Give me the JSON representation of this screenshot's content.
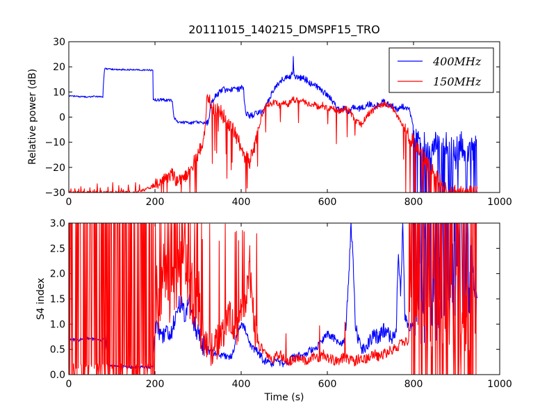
{
  "colors": {
    "s400": "#0000ff",
    "s150": "#ff0000",
    "axis": "#000000",
    "bg": "#ffffff"
  },
  "chart_data": [
    {
      "type": "line",
      "title": "20111015_140215_DMSPF15_TRO",
      "xlabel": "",
      "ylabel": "Relative power (dB)",
      "xlim": [
        0,
        1000
      ],
      "ylim": [
        -30,
        30
      ],
      "xticks": [
        "0",
        "200",
        "400",
        "600",
        "800",
        "1000"
      ],
      "yticks": [
        "−30",
        "−20",
        "−10",
        "0",
        "10",
        "20",
        "30"
      ],
      "legend_position": "top-right",
      "grid": false,
      "series": [
        {
          "name": "400MHz",
          "color_key": "s400",
          "style": "power400",
          "x": [
            0,
            20,
            40,
            60,
            79,
            80,
            83,
            84,
            100,
            130,
            160,
            190,
            195,
            196,
            200,
            215,
            230,
            240,
            244,
            248,
            250,
            255,
            265,
            280,
            300,
            320,
            325,
            330,
            340,
            350,
            360,
            370,
            380,
            390,
            400,
            405,
            410,
            415,
            420,
            430,
            440,
            450,
            460,
            470,
            480,
            490,
            500,
            510,
            515,
            520,
            521,
            522,
            524,
            530,
            540,
            550,
            560,
            570,
            580,
            590,
            600,
            610,
            620,
            630,
            640,
            650,
            660,
            670,
            680,
            690,
            700,
            710,
            720,
            730,
            740,
            750,
            760,
            770,
            780,
            790,
            795,
            800,
            805,
            810,
            815,
            820,
            830,
            840,
            850,
            860,
            870,
            880,
            890,
            900,
            910,
            920,
            930,
            940,
            945,
            948
          ],
          "y": [
            8.5,
            8.3,
            8.0,
            8.2,
            8.0,
            12.0,
            19.2,
            19.3,
            19.0,
            18.9,
            18.8,
            18.7,
            18.6,
            7.0,
            6.8,
            7.0,
            6.6,
            6.5,
            0.0,
            -1.0,
            -1.5,
            -1.8,
            -2.0,
            -2.3,
            -2.0,
            -2.5,
            -1.0,
            5.0,
            8.0,
            10.0,
            11.0,
            10.5,
            11.5,
            11.0,
            11.5,
            12.0,
            2.0,
            1.0,
            0.5,
            1.0,
            1.5,
            2.0,
            5.0,
            9.0,
            12.0,
            14.0,
            15.5,
            16.0,
            16.0,
            18.0,
            24.0,
            18.0,
            16.0,
            15.5,
            15.8,
            15.0,
            13.5,
            12.5,
            11.5,
            10.0,
            9.0,
            7.0,
            4.0,
            3.0,
            3.5,
            2.0,
            4.0,
            3.0,
            4.0,
            4.5,
            5.5,
            4.0,
            5.0,
            6.0,
            5.0,
            4.5,
            3.0,
            4.0,
            4.0,
            3.5,
            0.0,
            -5.0,
            -8.0,
            -10.0,
            -12.0,
            -10.0,
            -15.0,
            -12.0,
            -11.0,
            -10.0,
            -13.0,
            -15.0,
            -12.0,
            -18.0,
            -10.0,
            -15.0,
            -12.0,
            -14.0,
            -10.0,
            -15.0
          ]
        },
        {
          "name": "150MHz",
          "color_key": "s150",
          "style": "power150",
          "x": [
            0,
            30,
            60,
            90,
            120,
            150,
            170,
            190,
            200,
            210,
            220,
            230,
            240,
            250,
            260,
            270,
            280,
            290,
            300,
            310,
            315,
            320,
            325,
            330,
            340,
            350,
            360,
            370,
            380,
            390,
            400,
            410,
            420,
            430,
            440,
            450,
            460,
            470,
            480,
            490,
            500,
            510,
            520,
            530,
            540,
            550,
            560,
            570,
            580,
            590,
            600,
            610,
            620,
            630,
            640,
            650,
            660,
            670,
            680,
            690,
            700,
            710,
            720,
            730,
            740,
            750,
            760,
            770,
            780,
            790,
            800,
            810,
            820,
            830,
            840,
            850,
            860,
            870,
            880,
            890,
            900,
            910,
            920,
            930,
            940,
            948
          ],
          "y": [
            -30.0,
            -30.0,
            -30.0,
            -30.0,
            -30.0,
            -30.0,
            -29.0,
            -28.0,
            -27.0,
            -26.0,
            -25.0,
            -24.0,
            -22.0,
            -26.0,
            -25.0,
            -24.0,
            -22.0,
            -18.0,
            -15.0,
            -10.0,
            -5.0,
            6.0,
            7.0,
            5.0,
            3.0,
            3.0,
            0.0,
            -2.0,
            -5.0,
            -8.0,
            -12.0,
            -16.0,
            -18.0,
            -12.0,
            -5.0,
            2.0,
            5.0,
            5.5,
            6.0,
            4.5,
            6.0,
            5.0,
            7.0,
            6.5,
            7.0,
            6.0,
            5.0,
            5.0,
            4.0,
            5.0,
            3.0,
            3.5,
            3.0,
            2.5,
            3.5,
            3.0,
            0.0,
            -2.0,
            -3.0,
            0.0,
            2.0,
            3.0,
            4.0,
            5.0,
            5.0,
            4.0,
            1.0,
            -2.0,
            -5.0,
            -8.0,
            -10.0,
            -12.0,
            -15.0,
            -18.0,
            -20.0,
            -23.0,
            -25.0,
            -28.0,
            -30.0,
            -30.0,
            -30.0,
            -30.0,
            -30.0,
            -30.0,
            -30.0,
            -30.0
          ]
        }
      ]
    },
    {
      "type": "line",
      "title": "",
      "xlabel": "Time (s)",
      "ylabel": "S4 index",
      "xlim": [
        0,
        1000
      ],
      "ylim": [
        0,
        3
      ],
      "xticks": [
        "0",
        "200",
        "400",
        "600",
        "800",
        "1000"
      ],
      "yticks": [
        "0.0",
        "0.5",
        "1.0",
        "1.5",
        "2.0",
        "2.5",
        "3.0"
      ],
      "grid": false,
      "series": [
        {
          "color_key": "s400",
          "style": "s4_400",
          "x": [
            0,
            20,
            40,
            60,
            80,
            85,
            90,
            100,
            120,
            140,
            160,
            180,
            195,
            200,
            210,
            220,
            240,
            250,
            260,
            270,
            280,
            290,
            300,
            310,
            320,
            330,
            340,
            350,
            360,
            370,
            380,
            390,
            400,
            410,
            420,
            430,
            440,
            450,
            460,
            470,
            480,
            490,
            500,
            510,
            520,
            530,
            540,
            550,
            560,
            570,
            580,
            590,
            600,
            610,
            620,
            630,
            640,
            645,
            650,
            655,
            660,
            665,
            670,
            680,
            690,
            700,
            710,
            720,
            730,
            740,
            750,
            760,
            765,
            770,
            775,
            780,
            790,
            800
          ],
          "y": [
            0.7,
            0.68,
            0.72,
            0.7,
            0.68,
            0.85,
            0.2,
            0.17,
            0.16,
            0.15,
            0.15,
            0.15,
            0.15,
            0.9,
            0.85,
            0.8,
            0.9,
            1.3,
            1.4,
            1.2,
            1.5,
            1.0,
            0.8,
            0.6,
            0.5,
            0.45,
            0.4,
            0.38,
            0.36,
            0.35,
            0.38,
            0.8,
            1.0,
            0.9,
            0.6,
            0.5,
            0.45,
            0.3,
            0.25,
            0.2,
            0.3,
            0.25,
            0.2,
            0.25,
            0.35,
            0.4,
            0.35,
            0.4,
            0.5,
            0.45,
            0.6,
            0.7,
            0.8,
            0.75,
            0.7,
            0.6,
            0.7,
            1.2,
            2.0,
            3.0,
            2.2,
            1.0,
            0.7,
            0.5,
            0.6,
            0.7,
            0.8,
            0.7,
            0.9,
            0.8,
            0.7,
            0.9,
            2.5,
            1.5,
            3.0,
            1.2,
            1.0,
            1.0
          ]
        },
        {
          "color_key": "s150",
          "style": "s4_150",
          "x": [
            0,
            50,
            100,
            150,
            200,
            210,
            220,
            230,
            240,
            250,
            260,
            270,
            280,
            290,
            300,
            310,
            320,
            330,
            340,
            350,
            360,
            370,
            380,
            390,
            400,
            410,
            420,
            430,
            440,
            450,
            460,
            470,
            480,
            490,
            500,
            510,
            520,
            530,
            540,
            550,
            560,
            570,
            580,
            590,
            600,
            610,
            620,
            630,
            640,
            650,
            660,
            670,
            680,
            690,
            700,
            710,
            720,
            730,
            740,
            750,
            760,
            770,
            780,
            790,
            800
          ],
          "y": [
            1.5,
            1.5,
            1.5,
            1.5,
            1.5,
            1.5,
            2.0,
            1.8,
            1.6,
            1.8,
            2.0,
            2.2,
            1.8,
            1.6,
            1.5,
            0.8,
            0.6,
            0.5,
            0.6,
            0.7,
            0.9,
            1.2,
            1.0,
            0.8,
            1.2,
            1.5,
            2.0,
            1.0,
            0.6,
            0.5,
            0.4,
            0.3,
            0.35,
            0.4,
            0.3,
            0.25,
            0.3,
            0.35,
            0.3,
            0.25,
            0.3,
            0.35,
            0.3,
            0.4,
            0.35,
            0.3,
            0.25,
            0.3,
            0.35,
            0.3,
            0.25,
            0.3,
            0.35,
            0.3,
            0.35,
            0.4,
            0.35,
            0.4,
            0.45,
            0.5,
            0.55,
            0.6,
            0.65,
            0.7,
            0.7
          ]
        }
      ]
    }
  ],
  "legend": {
    "items": [
      {
        "label": "400MHz",
        "color_key": "s400"
      },
      {
        "label": "150MHz",
        "color_key": "s150"
      }
    ]
  }
}
